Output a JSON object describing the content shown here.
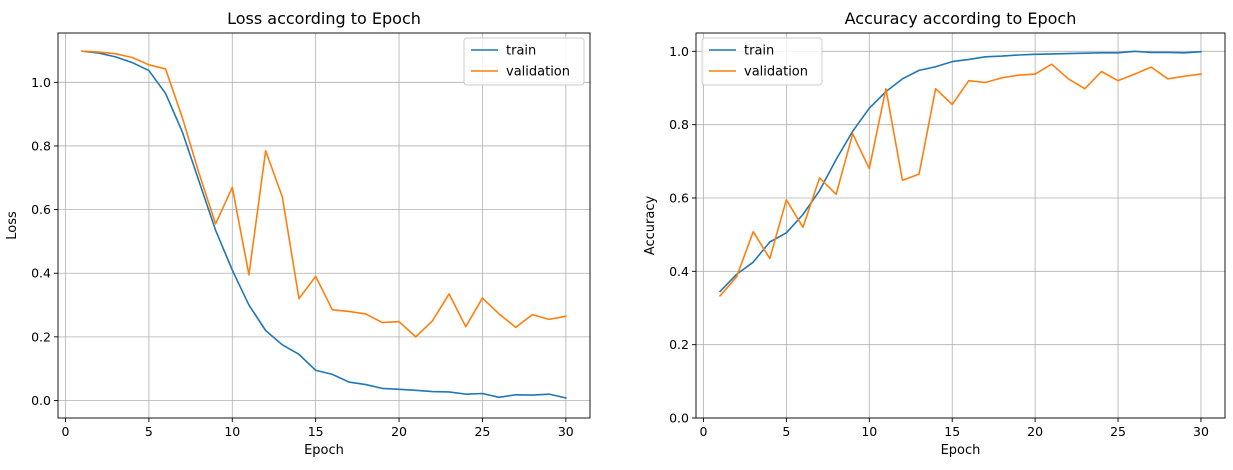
{
  "chart_data": [
    {
      "type": "line",
      "title": "Loss according to Epoch",
      "xlabel": "Epoch",
      "ylabel": "Loss",
      "xlim": [
        -0.45,
        31.45
      ],
      "ylim": [
        -0.055,
        1.155
      ],
      "xticks": [
        0,
        5,
        10,
        15,
        20,
        25,
        30
      ],
      "yticks": [
        0.0,
        0.2,
        0.4,
        0.6,
        0.8,
        1.0
      ],
      "ytick_labels": [
        "0.0",
        "0.2",
        "0.4",
        "0.6",
        "0.8",
        "1.0"
      ],
      "grid": true,
      "legend_position": "top-right",
      "x": [
        1,
        2,
        3,
        4,
        5,
        6,
        7,
        8,
        9,
        10,
        11,
        12,
        13,
        14,
        15,
        16,
        17,
        18,
        19,
        20,
        21,
        22,
        23,
        24,
        25,
        26,
        27,
        28,
        29,
        30
      ],
      "series": [
        {
          "name": "train",
          "color": "#1f77b4",
          "values": [
            1.098,
            1.092,
            1.08,
            1.062,
            1.037,
            0.965,
            0.845,
            0.69,
            0.535,
            0.41,
            0.3,
            0.22,
            0.175,
            0.145,
            0.095,
            0.082,
            0.058,
            0.05,
            0.038,
            0.035,
            0.032,
            0.028,
            0.027,
            0.02,
            0.022,
            0.01,
            0.018,
            0.017,
            0.02,
            0.008
          ]
        },
        {
          "name": "validation",
          "color": "#ff7f0e",
          "values": [
            1.098,
            1.095,
            1.09,
            1.078,
            1.055,
            1.042,
            0.89,
            0.715,
            0.555,
            0.67,
            0.395,
            0.785,
            0.64,
            0.32,
            0.39,
            0.285,
            0.28,
            0.272,
            0.245,
            0.248,
            0.2,
            0.25,
            0.335,
            0.232,
            0.322,
            0.272,
            0.23,
            0.27,
            0.255,
            0.265
          ]
        }
      ]
    },
    {
      "type": "line",
      "title": "Accuracy according to Epoch",
      "xlabel": "Epoch",
      "ylabel": "Accuracy",
      "xlim": [
        -0.45,
        31.45
      ],
      "ylim": [
        0.0,
        1.05
      ],
      "xticks": [
        0,
        5,
        10,
        15,
        20,
        25,
        30
      ],
      "yticks": [
        0.0,
        0.2,
        0.4,
        0.6,
        0.8,
        1.0
      ],
      "ytick_labels": [
        "0.0",
        "0.2",
        "0.4",
        "0.6",
        "0.8",
        "1.0"
      ],
      "grid": true,
      "legend_position": "top-left",
      "x": [
        1,
        2,
        3,
        4,
        5,
        6,
        7,
        8,
        9,
        10,
        11,
        12,
        13,
        14,
        15,
        16,
        17,
        18,
        19,
        20,
        21,
        22,
        23,
        24,
        25,
        26,
        27,
        28,
        29,
        30
      ],
      "series": [
        {
          "name": "train",
          "color": "#1f77b4",
          "values": [
            0.345,
            0.392,
            0.425,
            0.48,
            0.505,
            0.555,
            0.62,
            0.705,
            0.782,
            0.845,
            0.89,
            0.925,
            0.948,
            0.958,
            0.972,
            0.978,
            0.985,
            0.987,
            0.99,
            0.992,
            0.993,
            0.994,
            0.995,
            0.996,
            0.996,
            1.0,
            0.997,
            0.997,
            0.996,
            0.999
          ]
        },
        {
          "name": "validation",
          "color": "#ff7f0e",
          "values": [
            0.333,
            0.385,
            0.508,
            0.435,
            0.595,
            0.52,
            0.655,
            0.61,
            0.775,
            0.68,
            0.898,
            0.648,
            0.665,
            0.898,
            0.855,
            0.92,
            0.915,
            0.928,
            0.935,
            0.938,
            0.965,
            0.925,
            0.898,
            0.945,
            0.92,
            0.938,
            0.957,
            0.925,
            0.932,
            0.938
          ]
        }
      ]
    }
  ]
}
